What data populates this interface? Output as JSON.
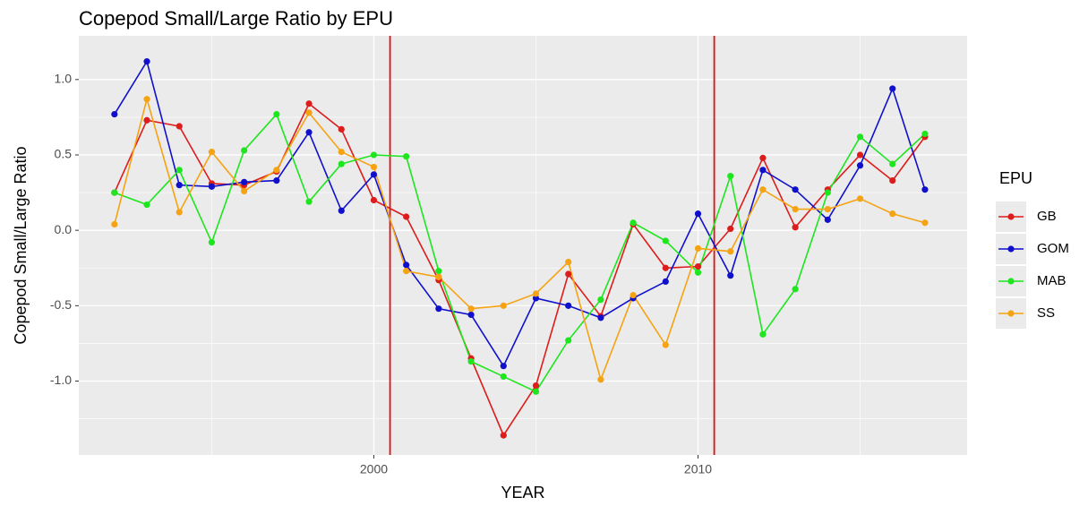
{
  "chart_data": {
    "type": "line",
    "title": "Copepod Small/Large Ratio by EPU",
    "x_label": "YEAR",
    "y_label": "Copepod Small/Large Ratio",
    "x": [
      1992,
      1993,
      1994,
      1995,
      1996,
      1997,
      1998,
      1999,
      2000,
      2001,
      2002,
      2003,
      2004,
      2005,
      2006,
      2007,
      2008,
      2009,
      2010,
      2011,
      2012,
      2013,
      2014,
      2015,
      2016,
      2017
    ],
    "series": [
      {
        "name": "GB",
        "color": "#dd1c1c",
        "values": [
          0.25,
          0.73,
          0.69,
          0.31,
          0.3,
          0.39,
          0.84,
          0.67,
          0.2,
          0.09,
          -0.33,
          -0.85,
          -1.36,
          -1.03,
          -0.29,
          -0.57,
          0.04,
          -0.25,
          -0.24,
          0.01,
          0.48,
          0.02,
          0.27,
          0.5,
          0.33,
          0.62
        ]
      },
      {
        "name": "GOM",
        "color": "#1010cc",
        "values": [
          0.77,
          1.12,
          0.3,
          0.29,
          0.32,
          0.33,
          0.65,
          0.13,
          0.37,
          -0.23,
          -0.52,
          -0.56,
          -0.9,
          -0.45,
          -0.5,
          -0.58,
          -0.45,
          -0.34,
          0.11,
          -0.3,
          0.4,
          0.27,
          0.07,
          0.43,
          0.94,
          0.27
        ]
      },
      {
        "name": "MAB",
        "color": "#1ee61e",
        "values": [
          0.25,
          0.17,
          0.4,
          -0.08,
          0.53,
          0.77,
          0.19,
          0.44,
          0.5,
          0.49,
          -0.27,
          -0.87,
          -0.97,
          -1.07,
          -0.73,
          -0.46,
          0.05,
          -0.07,
          -0.28,
          0.36,
          -0.69,
          -0.39,
          0.25,
          0.62,
          0.44,
          0.64
        ]
      },
      {
        "name": "SS",
        "color": "#f5a313",
        "values": [
          0.04,
          0.87,
          0.12,
          0.52,
          0.26,
          0.4,
          0.78,
          0.52,
          0.42,
          -0.27,
          -0.31,
          -0.52,
          -0.5,
          -0.42,
          -0.21,
          -0.99,
          -0.43,
          -0.76,
          -0.12,
          -0.14,
          0.27,
          0.14,
          0.14,
          0.21,
          0.11,
          0.05
        ]
      }
    ],
    "legend_title": "EPU",
    "legend_position": "right",
    "xlim": [
      1990.9,
      2018.3
    ],
    "xticks": [
      2000,
      2010
    ],
    "x_minor_grid": [
      1995,
      2005,
      2015
    ],
    "ylim": [
      -1.49,
      1.29
    ],
    "yticks": [
      {
        "value": -1,
        "label": "-1.0"
      },
      -0.5,
      {
        "value": 0,
        "label": "0.0"
      },
      0.5,
      {
        "value": 1,
        "label": "1.0"
      }
    ],
    "y_minor_grid": [
      -1.25,
      -0.75,
      -0.25,
      0.25,
      0.75
    ],
    "vlines": [
      2000.5,
      2010.5
    ],
    "vline_color": "#e01010",
    "grid": true
  }
}
